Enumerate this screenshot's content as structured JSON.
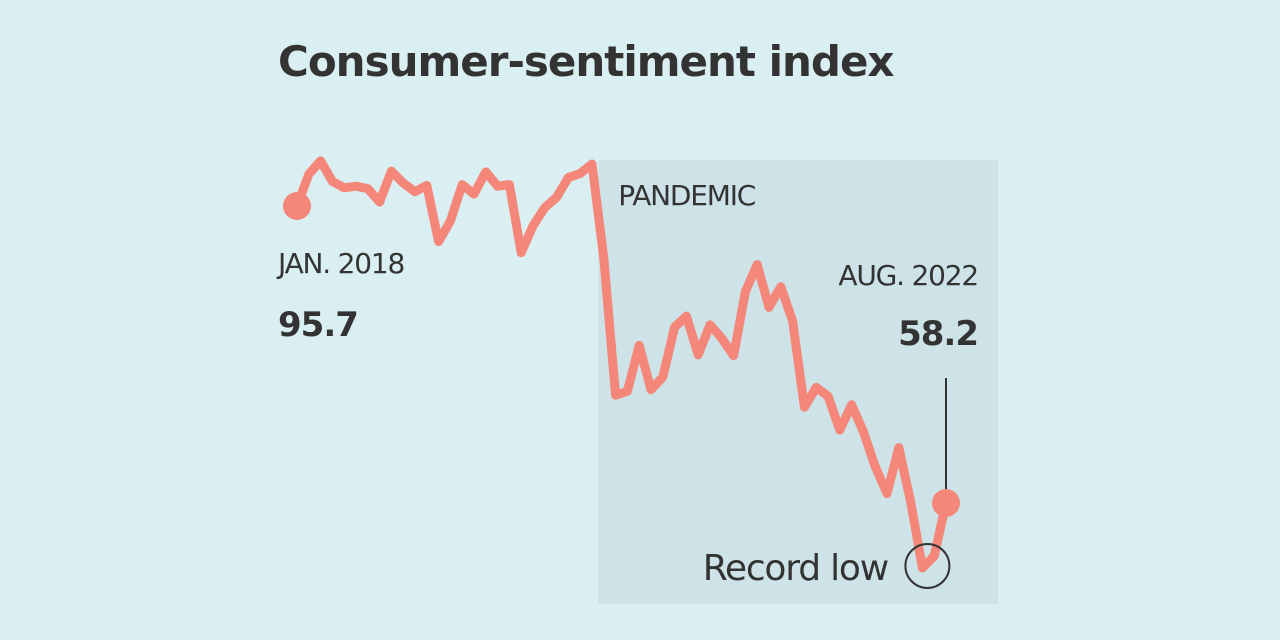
{
  "chart_data": {
    "type": "line",
    "title": "Consumer-sentiment index",
    "xlabel": "",
    "ylabel": "",
    "grid": false,
    "x": [
      "2018-01",
      "2018-02",
      "2018-03",
      "2018-04",
      "2018-05",
      "2018-06",
      "2018-07",
      "2018-08",
      "2018-09",
      "2018-10",
      "2018-11",
      "2018-12",
      "2019-01",
      "2019-02",
      "2019-03",
      "2019-04",
      "2019-05",
      "2019-06",
      "2019-07",
      "2019-08",
      "2019-09",
      "2019-10",
      "2019-11",
      "2019-12",
      "2020-01",
      "2020-02",
      "2020-03",
      "2020-04",
      "2020-05",
      "2020-06",
      "2020-07",
      "2020-08",
      "2020-09",
      "2020-10",
      "2020-11",
      "2020-12",
      "2021-01",
      "2021-02",
      "2021-03",
      "2021-04",
      "2021-05",
      "2021-06",
      "2021-07",
      "2021-08",
      "2021-09",
      "2021-10",
      "2021-11",
      "2021-12",
      "2022-01",
      "2022-02",
      "2022-03",
      "2022-04",
      "2022-05",
      "2022-06",
      "2022-07",
      "2022-08"
    ],
    "series": [
      {
        "name": "Consumer sentiment",
        "color": "#f4877a",
        "values": [
          95.7,
          99.7,
          101.4,
          98.8,
          98.0,
          98.2,
          97.9,
          96.2,
          100.1,
          98.6,
          97.5,
          98.3,
          91.2,
          93.8,
          98.4,
          97.2,
          100.0,
          98.2,
          98.4,
          89.8,
          93.2,
          95.5,
          96.8,
          99.3,
          99.8,
          101.0,
          89.1,
          71.8,
          72.3,
          78.1,
          72.5,
          74.1,
          80.4,
          81.8,
          76.9,
          80.7,
          79.0,
          76.8,
          84.9,
          88.3,
          82.9,
          85.5,
          81.2,
          70.3,
          72.8,
          71.7,
          67.4,
          70.6,
          67.2,
          62.8,
          59.4,
          65.2,
          58.4,
          50.0,
          51.5,
          58.2
        ]
      }
    ],
    "shaded_period": {
      "label": "PANDEMIC",
      "start": "2020-03",
      "end": "2022-08",
      "color": "#cde3e7"
    },
    "annotations": {
      "start": {
        "date_label": "JAN. 2018",
        "value_label": "95.7",
        "index": 0
      },
      "end": {
        "date_label": "AUG. 2022",
        "value_label": "58.2",
        "index": 55
      },
      "record_low": {
        "label": "Record low",
        "index": 53
      }
    },
    "ylim": [
      45,
      105
    ]
  },
  "colors": {
    "background": "#daeff2",
    "line": "#f4877a",
    "shade": "#cde3e7",
    "text": "#333333"
  }
}
